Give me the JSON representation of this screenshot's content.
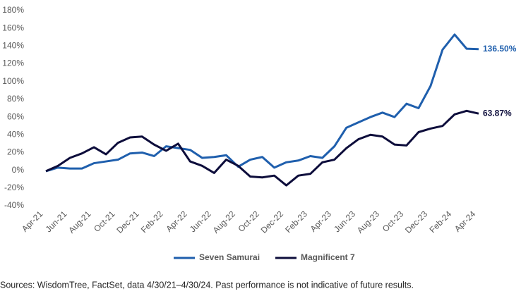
{
  "chart_data": {
    "type": "line",
    "categories": [
      "Apr-21",
      null,
      "Jun-21",
      null,
      "Aug-21",
      null,
      "Oct-21",
      null,
      "Dec-21",
      null,
      "Feb-22",
      null,
      "Apr-22",
      null,
      "Jun-22",
      null,
      "Aug-22",
      null,
      "Oct-22",
      null,
      "Dec-22",
      null,
      "Feb-23",
      null,
      "Apr-23",
      null,
      "Jun-23",
      null,
      "Aug-23",
      null,
      "Oct-23",
      null,
      "Dec-23",
      null,
      "Feb-24",
      null,
      "Apr-24"
    ],
    "series": [
      {
        "name": "Seven Samurai",
        "color": "#1f5fad",
        "values": [
          -1,
          3,
          2,
          2,
          8,
          10,
          12,
          19,
          20,
          16,
          27,
          25,
          23,
          14,
          15,
          17,
          4,
          12,
          15,
          3,
          9,
          11,
          16,
          14,
          27,
          48,
          54,
          60,
          65,
          60,
          75,
          70,
          95,
          136,
          153,
          137,
          136.5
        ],
        "value_labels": [
          null,
          null,
          null,
          null,
          null,
          null,
          null,
          null,
          null,
          null,
          null,
          null,
          null,
          null,
          null,
          null,
          null,
          null,
          null,
          null,
          null,
          null,
          null,
          null,
          null,
          null,
          null,
          null,
          null,
          null,
          null,
          null,
          null,
          null,
          null,
          null,
          "136.50%"
        ]
      },
      {
        "name": "Magnificent 7",
        "color": "#0d0d3b",
        "values": [
          -1,
          5,
          14,
          19,
          26,
          18,
          31,
          37,
          38,
          29,
          22,
          30,
          10,
          5,
          -3,
          12,
          5,
          -7,
          -8,
          -6,
          -17,
          -6,
          -4,
          9,
          12,
          25,
          35,
          40,
          38,
          29,
          28,
          43,
          47,
          50,
          63,
          67,
          63.87
        ],
        "value_labels": [
          null,
          null,
          null,
          null,
          null,
          null,
          null,
          null,
          null,
          null,
          null,
          null,
          null,
          null,
          null,
          null,
          null,
          null,
          null,
          null,
          null,
          null,
          null,
          null,
          null,
          null,
          null,
          null,
          null,
          null,
          null,
          null,
          null,
          null,
          null,
          null,
          "63.87%"
        ]
      }
    ],
    "ylim": [
      -40,
      180
    ],
    "yticks": [
      {
        "value": -40,
        "label": "-40%"
      },
      {
        "value": -20,
        "label": "-20%"
      },
      {
        "value": 0,
        "label": "0%"
      },
      {
        "value": 20,
        "label": "20%"
      },
      {
        "value": 40,
        "label": "40%"
      },
      {
        "value": 60,
        "label": "60%"
      },
      {
        "value": 80,
        "label": "80%"
      },
      {
        "value": 100,
        "label": "100%"
      },
      {
        "value": 120,
        "label": "120%"
      },
      {
        "value": 140,
        "label": "140%"
      },
      {
        "value": 160,
        "label": "160%"
      },
      {
        "value": 180,
        "label": "180%"
      }
    ],
    "grid": false,
    "source": "Sources: WisdomTree, FactSet, data 4/30/21–4/30/24. Past performance is not indicative of future results."
  }
}
